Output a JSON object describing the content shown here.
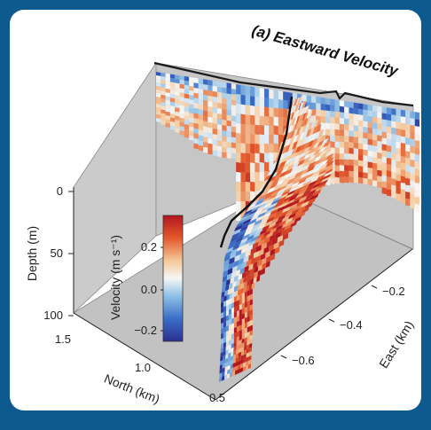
{
  "colors": {
    "frame": "#0d5a8e",
    "panel": "#ffffff",
    "walls": "#c9c9c9",
    "floor": "#c2c2c2",
    "colormap": [
      "#2a2f8f",
      "#3a6ec7",
      "#8fc0e6",
      "#f6f6f6",
      "#f4c89a",
      "#e3592b",
      "#b2151e"
    ]
  },
  "chart_data": {
    "type": "heatmap",
    "title": "(a) Eastward Velocity",
    "xlabel": "North (km)",
    "ylabel": "Depth (m)",
    "zlabel": "East (km)",
    "x_ticks": [
      "1.5",
      "1.0",
      "0.5"
    ],
    "y_ticks": [
      "0",
      "50",
      "100"
    ],
    "z_ticks": [
      "−0.2",
      "−0.4",
      "−0.6"
    ],
    "xlim": [
      0.35,
      1.5
    ],
    "ylim": [
      100,
      0
    ],
    "zlim": [
      -0.7,
      -0.1
    ],
    "colorbar": {
      "label": "Velocity (m s⁻¹)",
      "ticks": [
        "0.2",
        "0.0",
        "−0.2"
      ],
      "range": [
        -0.3,
        0.3
      ]
    }
  }
}
